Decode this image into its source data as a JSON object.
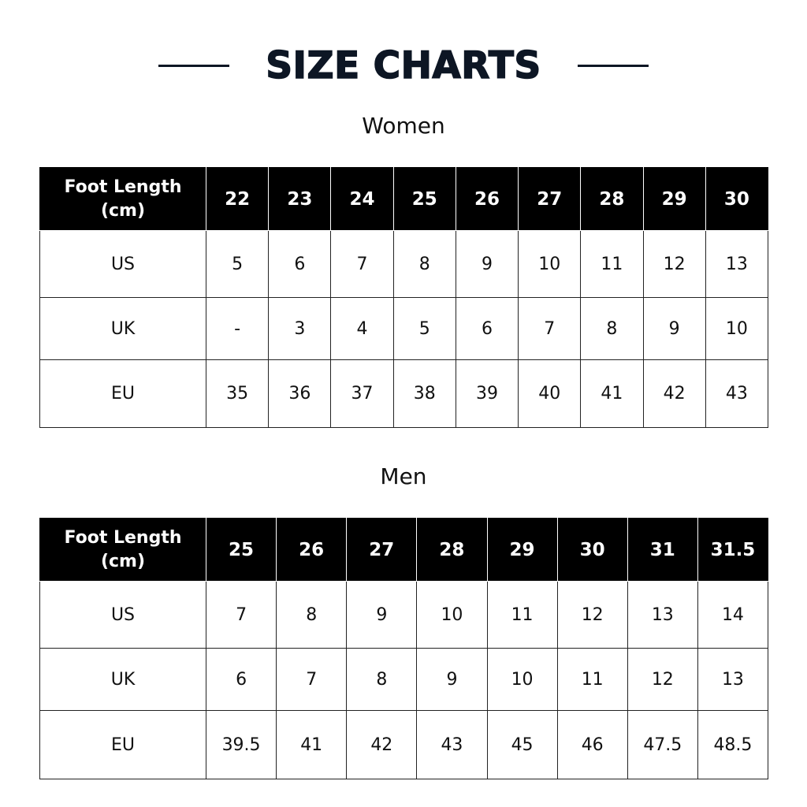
{
  "title": "SIZE CHARTS",
  "colors": {
    "title": "#0d1624",
    "header_bg": "#000000",
    "header_text": "#ffffff"
  },
  "women": {
    "heading": "Women",
    "header_label_line1": "Foot Length",
    "header_label_line2": "(cm)",
    "foot_length": [
      "22",
      "23",
      "24",
      "25",
      "26",
      "27",
      "28",
      "29",
      "30"
    ],
    "rows": [
      {
        "label": "US",
        "values": [
          "5",
          "6",
          "7",
          "8",
          "9",
          "10",
          "11",
          "12",
          "13"
        ]
      },
      {
        "label": "UK",
        "values": [
          "-",
          "3",
          "4",
          "5",
          "6",
          "7",
          "8",
          "9",
          "10"
        ]
      },
      {
        "label": "EU",
        "values": [
          "35",
          "36",
          "37",
          "38",
          "39",
          "40",
          "41",
          "42",
          "43"
        ]
      }
    ]
  },
  "men": {
    "heading": "Men",
    "header_label_line1": "Foot Length",
    "header_label_line2": "(cm)",
    "foot_length": [
      "25",
      "26",
      "27",
      "28",
      "29",
      "30",
      "31",
      "31.5"
    ],
    "rows": [
      {
        "label": "US",
        "values": [
          "7",
          "8",
          "9",
          "10",
          "11",
          "12",
          "13",
          "14"
        ]
      },
      {
        "label": "UK",
        "values": [
          "6",
          "7",
          "8",
          "9",
          "10",
          "11",
          "12",
          "13"
        ]
      },
      {
        "label": "EU",
        "values": [
          "39.5",
          "41",
          "42",
          "43",
          "45",
          "46",
          "47.5",
          "48.5"
        ]
      }
    ]
  }
}
